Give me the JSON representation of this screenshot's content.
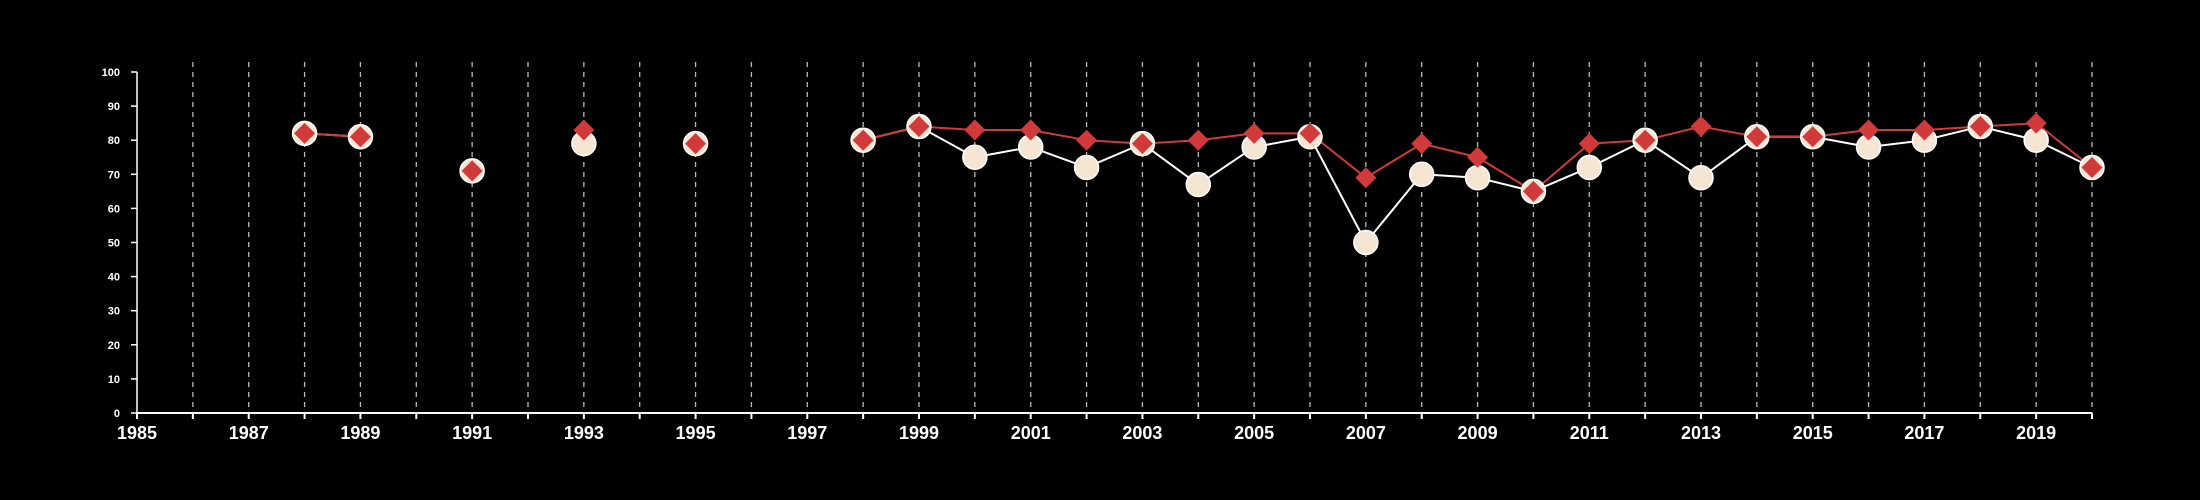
{
  "chart_data": {
    "type": "line",
    "title": "",
    "xlabel": "",
    "ylabel": "",
    "xlim": [
      1985,
      2020
    ],
    "ylim": [
      0,
      100
    ],
    "x_ticks": [
      1985,
      1986,
      1987,
      1988,
      1989,
      1990,
      1991,
      1992,
      1993,
      1994,
      1995,
      1996,
      1997,
      1998,
      1999,
      2000,
      2001,
      2002,
      2003,
      2004,
      2005,
      2006,
      2007,
      2008,
      2009,
      2010,
      2011,
      2012,
      2013,
      2014,
      2015,
      2016,
      2017,
      2018,
      2019,
      2020
    ],
    "x_tick_labels": [
      "1985",
      "",
      "1987",
      "",
      "1989",
      "",
      "1991",
      "",
      "1993",
      "",
      "1995",
      "",
      "1997",
      "",
      "1999",
      "",
      "2001",
      "",
      "2003",
      "",
      "2005",
      "",
      "2007",
      "",
      "2009",
      "",
      "2011",
      "",
      "2013",
      "",
      "2015",
      "",
      "2017",
      "",
      "2019",
      ""
    ],
    "y_ticks": [
      0,
      10,
      20,
      30,
      40,
      50,
      60,
      70,
      80,
      90,
      100
    ],
    "y_tick_labels": [
      "0",
      "10",
      "20",
      "30",
      "40",
      "50",
      "60",
      "70",
      "80",
      "90",
      "100"
    ],
    "grid": "vertical dashed",
    "legend": "none",
    "series": [
      {
        "marker": "circle",
        "color": "#f5e6d3",
        "points": [
          [
            1988,
            82
          ],
          [
            1989,
            81
          ],
          [
            1991,
            71
          ],
          [
            1993,
            79
          ],
          [
            1995,
            79
          ],
          [
            1998,
            80
          ],
          [
            1999,
            84
          ],
          [
            2000,
            75
          ],
          [
            2001,
            78
          ],
          [
            2002,
            72
          ],
          [
            2003,
            79
          ],
          [
            2004,
            67
          ],
          [
            2005,
            78
          ],
          [
            2006,
            81
          ],
          [
            2007,
            50
          ],
          [
            2008,
            70
          ],
          [
            2009,
            69
          ],
          [
            2010,
            65
          ],
          [
            2011,
            72
          ],
          [
            2012,
            80
          ],
          [
            2013,
            69
          ],
          [
            2014,
            81
          ],
          [
            2015,
            81
          ],
          [
            2016,
            78
          ],
          [
            2017,
            80
          ],
          [
            2018,
            84
          ],
          [
            2019,
            80
          ],
          [
            2020,
            72
          ]
        ]
      },
      {
        "marker": "diamond",
        "color": "#d03a3a",
        "points": [
          [
            1988,
            82
          ],
          [
            1989,
            81
          ],
          [
            1991,
            71
          ],
          [
            1993,
            83
          ],
          [
            1995,
            79
          ],
          [
            1998,
            80
          ],
          [
            1999,
            84
          ],
          [
            2000,
            83
          ],
          [
            2001,
            83
          ],
          [
            2002,
            80
          ],
          [
            2003,
            79
          ],
          [
            2004,
            80
          ],
          [
            2005,
            82
          ],
          [
            2006,
            82
          ],
          [
            2007,
            69
          ],
          [
            2008,
            79
          ],
          [
            2009,
            75
          ],
          [
            2010,
            65
          ],
          [
            2011,
            79
          ],
          [
            2012,
            80
          ],
          [
            2013,
            84
          ],
          [
            2014,
            81
          ],
          [
            2015,
            81
          ],
          [
            2016,
            83
          ],
          [
            2017,
            83
          ],
          [
            2018,
            84
          ],
          [
            2019,
            85
          ],
          [
            2020,
            72
          ]
        ]
      }
    ],
    "colors": {
      "background": "#000000",
      "axis": "#ffffff",
      "grid": "#bbbbbb"
    }
  }
}
